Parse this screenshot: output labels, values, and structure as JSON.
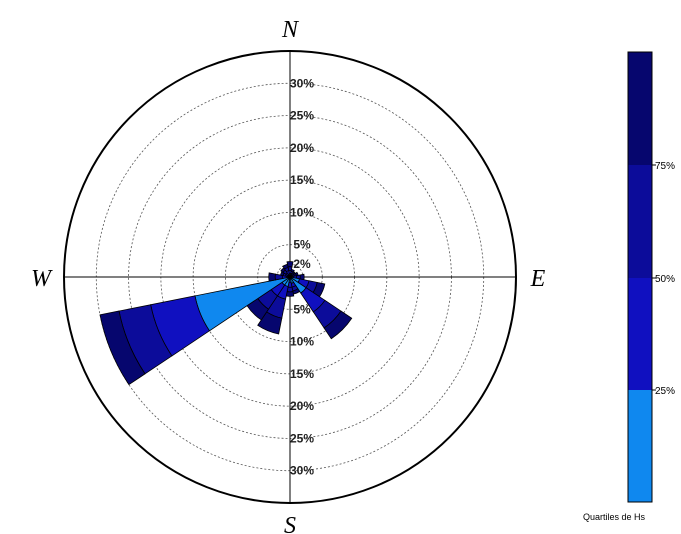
{
  "chart_data": {
    "type": "windrose",
    "compass_labels": {
      "north": "N",
      "east": "E",
      "south": "S",
      "west": "W"
    },
    "radial_ticks": [
      2,
      5,
      10,
      15,
      20,
      25,
      30
    ],
    "radial_tick_labels_top": [
      "2%",
      "5%",
      "10%",
      "15%",
      "20%",
      "25%",
      "30%"
    ],
    "radial_tick_labels_bottom": [
      "5%",
      "10%",
      "15%",
      "20%",
      "25%",
      "30%"
    ],
    "rmax": 35,
    "sector_width_deg": 22.5,
    "legend": {
      "title": "Quartiles de Hs",
      "ticks": [
        "25%",
        "50%",
        "75%"
      ]
    },
    "colors": [
      "#0f88ef",
      "#1010c0",
      "#0c0c9a",
      "#06066e"
    ],
    "sectors": [
      {
        "direction_deg": 0,
        "cumulative": [
          0.5,
          1.0,
          1.6,
          2.4
        ]
      },
      {
        "direction_deg": 22.5,
        "cumulative": [
          0.3,
          0.6,
          0.9,
          1.2
        ]
      },
      {
        "direction_deg": 45,
        "cumulative": [
          0.3,
          0.5,
          0.8,
          1.0
        ]
      },
      {
        "direction_deg": 67.5,
        "cumulative": [
          0.4,
          0.7,
          1.0,
          1.3
        ]
      },
      {
        "direction_deg": 90,
        "cumulative": [
          0.5,
          1.0,
          1.6,
          2.2
        ]
      },
      {
        "direction_deg": 112.5,
        "cumulative": [
          1.5,
          3.0,
          4.3,
          5.5
        ]
      },
      {
        "direction_deg": 135,
        "cumulative": [
          3.0,
          6.5,
          9.5,
          11.5
        ]
      },
      {
        "direction_deg": 157.5,
        "cumulative": [
          1.0,
          1.6,
          2.2,
          2.7
        ]
      },
      {
        "direction_deg": 180,
        "cumulative": [
          0.8,
          1.6,
          2.3,
          3.0
        ]
      },
      {
        "direction_deg": 202.5,
        "cumulative": [
          1.5,
          3.5,
          6.5,
          9.0
        ]
      },
      {
        "direction_deg": 225,
        "cumulative": [
          1.5,
          3.5,
          6.0,
          8.0
        ]
      },
      {
        "direction_deg": 247.5,
        "cumulative": [
          15.0,
          22.0,
          27.0,
          30.0
        ]
      },
      {
        "direction_deg": 270,
        "cumulative": [
          0.5,
          1.2,
          2.3,
          3.3
        ]
      },
      {
        "direction_deg": 292.5,
        "cumulative": [
          0.3,
          0.7,
          1.1,
          1.5
        ]
      },
      {
        "direction_deg": 315,
        "cumulative": [
          0.4,
          0.8,
          1.3,
          1.7
        ]
      },
      {
        "direction_deg": 337.5,
        "cumulative": [
          0.5,
          1.0,
          1.5,
          2.0
        ]
      }
    ]
  }
}
